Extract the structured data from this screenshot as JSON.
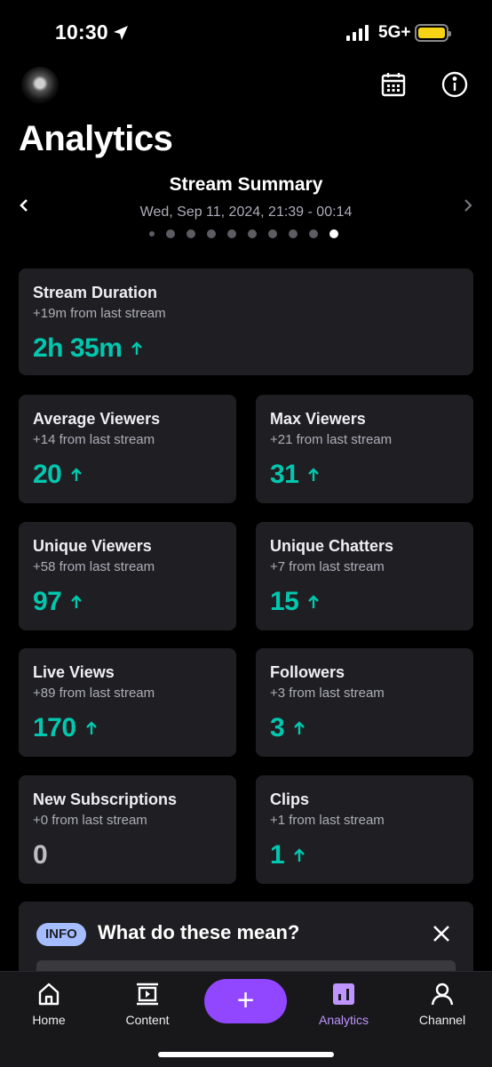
{
  "status_bar": {
    "time": "10:30",
    "network": "5G+"
  },
  "header": {
    "title": "Analytics"
  },
  "summary": {
    "title": "Stream Summary",
    "date_range": "Wed, Sep 11, 2024, 21:39 - 00:14",
    "page_count": 10,
    "active_page": 10
  },
  "cards": {
    "stream_duration": {
      "title": "Stream Duration",
      "subtitle": "+19m from last stream",
      "value": "2h 35m",
      "trend": "up"
    },
    "average_viewers": {
      "title": "Average Viewers",
      "subtitle": "+14 from last stream",
      "value": "20",
      "trend": "up"
    },
    "max_viewers": {
      "title": "Max Viewers",
      "subtitle": "+21 from last stream",
      "value": "31",
      "trend": "up"
    },
    "unique_viewers": {
      "title": "Unique Viewers",
      "subtitle": "+58 from last stream",
      "value": "97",
      "trend": "up"
    },
    "unique_chatters": {
      "title": "Unique Chatters",
      "subtitle": "+7 from last stream",
      "value": "15",
      "trend": "up"
    },
    "live_views": {
      "title": "Live Views",
      "subtitle": "+89 from last stream",
      "value": "170",
      "trend": "up"
    },
    "followers": {
      "title": "Followers",
      "subtitle": "+3 from last stream",
      "value": "3",
      "trend": "up"
    },
    "new_subscriptions": {
      "title": "New Subscriptions",
      "subtitle": "+0 from last stream",
      "value": "0",
      "trend": "none"
    },
    "clips": {
      "title": "Clips",
      "subtitle": "+1 from last stream",
      "value": "1",
      "trend": "up"
    }
  },
  "info_panel": {
    "badge": "INFO",
    "title": "What do these mean?"
  },
  "tab_bar": {
    "home": "Home",
    "content": "Content",
    "create": "+",
    "analytics": "Analytics",
    "channel": "Channel",
    "active": "Analytics"
  },
  "colors": {
    "accent": "#9147ff",
    "positive": "#00c8af",
    "active_tab": "#bf94ff",
    "card_bg": "#1f1f23",
    "battery": "#f6d415",
    "info_badge": "#a5bcff"
  },
  "icons": [
    "location-arrow-icon",
    "signal-icon",
    "battery-icon",
    "calendar-icon",
    "info-icon",
    "chevron-left-icon",
    "chevron-right-icon",
    "arrow-up-icon",
    "close-icon",
    "home-icon",
    "content-icon",
    "plus-icon",
    "analytics-icon",
    "channel-icon"
  ]
}
